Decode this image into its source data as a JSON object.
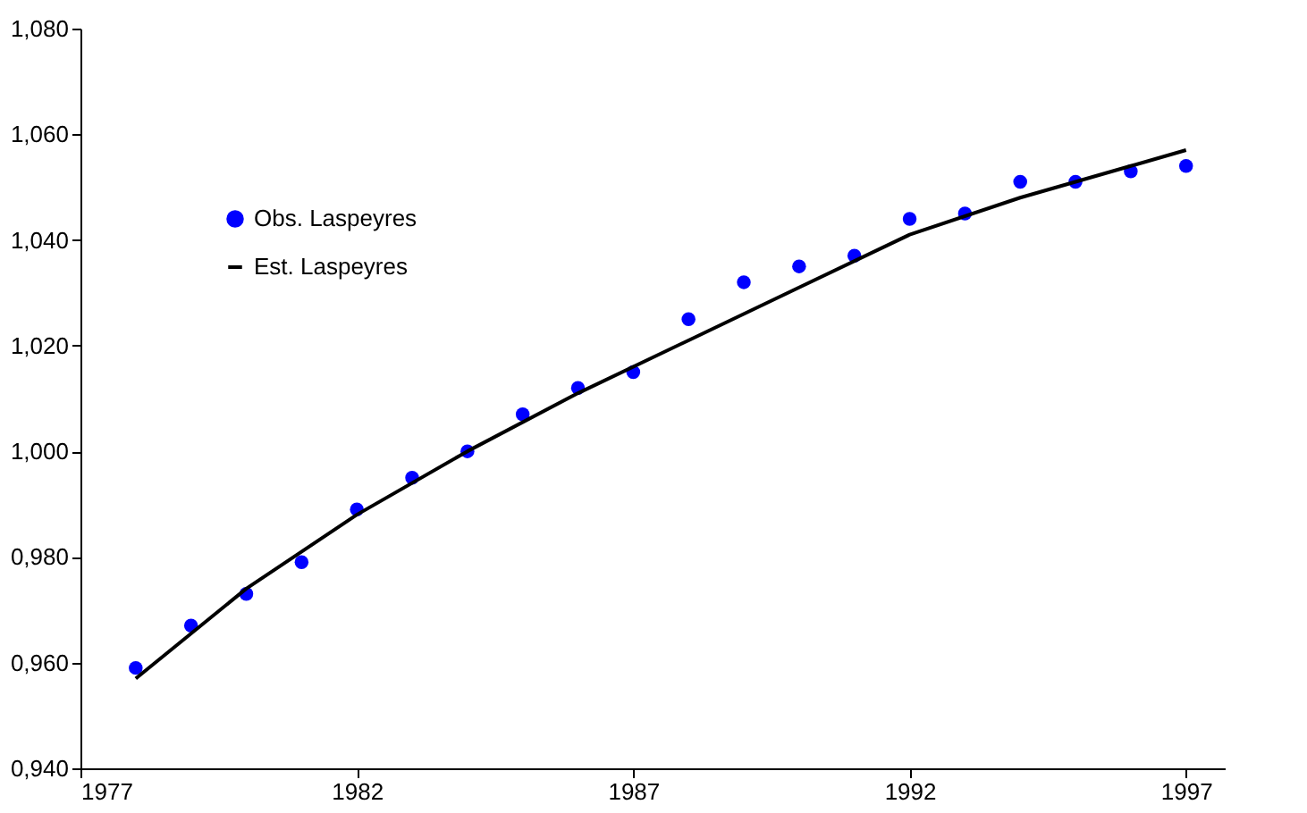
{
  "chart_data": {
    "type": "scatter",
    "legend": "top left",
    "grid": false,
    "xlim": [
      1977,
      1997.7
    ],
    "xticks": [
      1977,
      1982,
      1987,
      1992,
      1997
    ],
    "ylim": [
      0.94,
      1.08
    ],
    "yticks": [
      {
        "value": 0.94,
        "label": "0,940"
      },
      {
        "value": 0.96,
        "label": "0,960"
      },
      {
        "value": 0.98,
        "label": "0,980"
      },
      {
        "value": 1.0,
        "label": "1,000"
      },
      {
        "value": 1.02,
        "label": "1,020"
      },
      {
        "value": 1.04,
        "label": "1,040"
      },
      {
        "value": 1.06,
        "label": "1,060"
      },
      {
        "value": 1.08,
        "label": "1,080"
      }
    ],
    "series": [
      {
        "name": "Obs. Laspeyres",
        "marker": "circle",
        "color": "#0000ff",
        "x": [
          1978,
          1979,
          1980,
          1981,
          1982,
          1983,
          1984,
          1985,
          1986,
          1987,
          1988,
          1989,
          1990,
          1991,
          1992,
          1993,
          1994,
          1995,
          1996,
          1997
        ],
        "values": [
          0.959,
          0.967,
          0.973,
          0.979,
          0.989,
          0.995,
          1.0,
          1.007,
          1.012,
          1.015,
          1.025,
          1.032,
          1.035,
          1.037,
          1.044,
          1.045,
          1.051,
          1.051,
          1.053,
          1.054
        ]
      },
      {
        "name": "Est. Laspeyres",
        "type": "line",
        "line_style": "solid",
        "color": "#000000",
        "x": [
          1978,
          1980,
          1982,
          1984,
          1986,
          1988,
          1990,
          1992,
          1994,
          1996,
          1997
        ],
        "values": [
          0.957,
          0.974,
          0.988,
          1.0,
          1.011,
          1.021,
          1.031,
          1.041,
          1.048,
          1.054,
          1.057
        ]
      }
    ]
  }
}
